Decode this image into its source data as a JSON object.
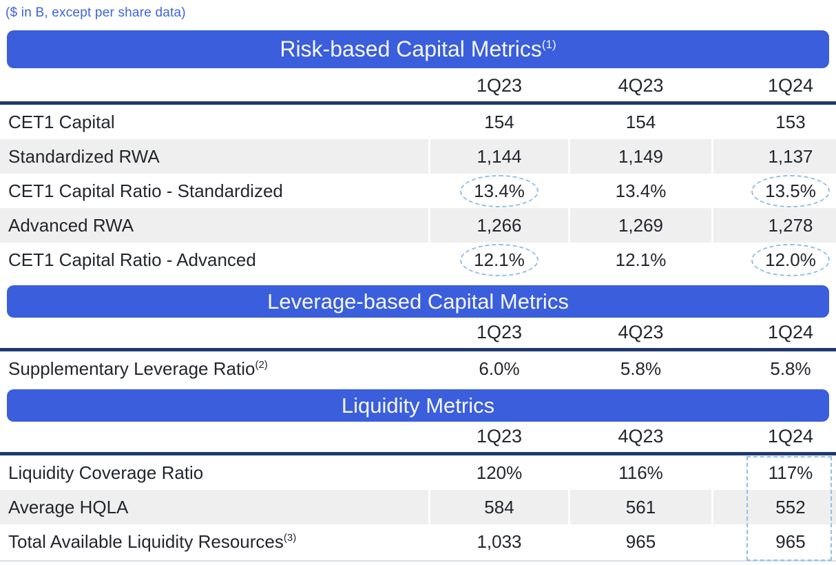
{
  "note": "($ in B, except per share data)",
  "columns": [
    "1Q23",
    "4Q23",
    "1Q24"
  ],
  "colors": {
    "banner_blue": "#3A5EDC",
    "note_blue": "#3E63DD",
    "navy_rule": "#1E3A6D",
    "row_shade": "#EFEFEF",
    "text": "#23262F",
    "highlight_dash_blue": "#8FBEE8"
  },
  "sections": [
    {
      "title": "Risk-based Capital Metrics",
      "title_sup": "(1)",
      "rows": [
        {
          "label": "CET1 Capital",
          "sup": "",
          "values": [
            "154",
            "154",
            "153"
          ],
          "shaded": false,
          "circled": []
        },
        {
          "label": "Standardized RWA",
          "sup": "",
          "values": [
            "1,144",
            "1,149",
            "1,137"
          ],
          "shaded": true,
          "circled": []
        },
        {
          "label": "CET1 Capital Ratio - Standardized",
          "sup": "",
          "values": [
            "13.4%",
            "13.4%",
            "13.5%"
          ],
          "shaded": false,
          "circled": [
            0,
            2
          ]
        },
        {
          "label": "Advanced RWA",
          "sup": "",
          "values": [
            "1,266",
            "1,269",
            "1,278"
          ],
          "shaded": true,
          "circled": []
        },
        {
          "label": "CET1 Capital Ratio - Advanced",
          "sup": "",
          "values": [
            "12.1%",
            "12.1%",
            "12.0%"
          ],
          "shaded": false,
          "circled": [
            0,
            2
          ]
        }
      ]
    },
    {
      "title": "Leverage-based Capital Metrics",
      "title_sup": "",
      "rows": [
        {
          "label": "Supplementary Leverage Ratio",
          "sup": "(2)",
          "values": [
            "6.0%",
            "5.8%",
            "5.8%"
          ],
          "shaded": false,
          "circled": []
        }
      ]
    },
    {
      "title": "Liquidity Metrics",
      "title_sup": "",
      "highlight_last_column": true,
      "rows": [
        {
          "label": "Liquidity Coverage Ratio",
          "sup": "",
          "values": [
            "120%",
            "116%",
            "117%"
          ],
          "shaded": false,
          "circled": []
        },
        {
          "label": "Average HQLA",
          "sup": "",
          "values": [
            "584",
            "561",
            "552"
          ],
          "shaded": true,
          "circled": []
        },
        {
          "label": "Total Available Liquidity Resources",
          "sup": "(3)",
          "values": [
            "1,033",
            "965",
            "965"
          ],
          "shaded": false,
          "circled": []
        }
      ]
    }
  ]
}
